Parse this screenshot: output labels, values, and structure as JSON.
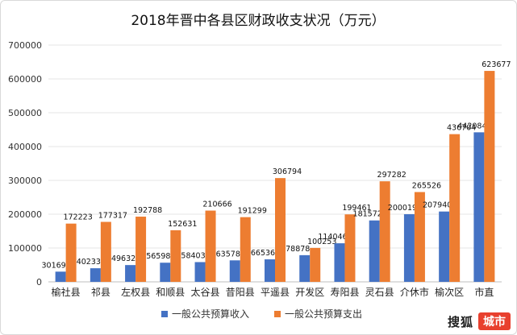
{
  "chart_data": {
    "type": "bar",
    "title": "2018年晋中各县区财政收支状况（万元）",
    "categories": [
      "榆社县",
      "祁县",
      "左权县",
      "和顺县",
      "太谷县",
      "昔阳县",
      "平遥县",
      "开发区",
      "寿阳县",
      "灵石县",
      "介休市",
      "榆次区",
      "市直"
    ],
    "series": [
      {
        "name": "一般公共预算收入",
        "color": "#4472c4",
        "values": [
          30169,
          40233,
          49632,
          56598,
          58403,
          63578,
          66536,
          78878,
          114046,
          181572,
          200019,
          207940,
          442084
        ]
      },
      {
        "name": "一般公共预算支出",
        "color": "#ed7d31",
        "values": [
          172223,
          177317,
          192788,
          152631,
          210666,
          191299,
          306794,
          100253,
          199461,
          297282,
          265526,
          436704,
          623677
        ]
      }
    ],
    "ylim": [
      0,
      700000
    ],
    "yticks": [
      "0",
      "100000",
      "200000",
      "300000",
      "400000",
      "500000",
      "600000",
      "700000"
    ],
    "grid": true,
    "legend": "bottom"
  },
  "watermark": {
    "text": "搜狐",
    "badge": "城市"
  }
}
